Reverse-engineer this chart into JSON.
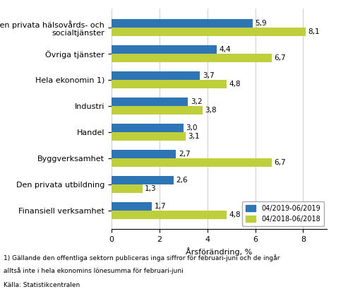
{
  "categories": [
    "Den privata hälsovårds- och\nsocialtjänster",
    "Övriga tjänster",
    "Hela ekonomin 1)",
    "Industri",
    "Handel",
    "Byggverksamhet",
    "Den privata utbildning",
    "Finansiell verksamhet"
  ],
  "values_2019": [
    5.9,
    4.4,
    3.7,
    3.2,
    3.0,
    2.7,
    2.6,
    1.7
  ],
  "values_2018": [
    8.1,
    6.7,
    4.8,
    3.8,
    3.1,
    6.7,
    1.3,
    4.8
  ],
  "color_2019": "#2E75B6",
  "color_2018": "#BFCE3B",
  "xlabel": "Årsförändring, %",
  "legend_2019": "04/2019-06/2019",
  "legend_2018": "04/2018-06/2018",
  "xlim": [
    0,
    9
  ],
  "xticks": [
    0,
    2,
    4,
    6,
    8
  ],
  "footnote1": "1) Gällande den offentliga sektorn publiceras inga siffror för februari-juni och de ingår",
  "footnote2": "alltså inte i hela ekonomins lönesumma för februari-juni",
  "source": "Källa: Statistikcentralen",
  "bar_height": 0.33,
  "value_fontsize": 7.5,
  "label_fontsize": 8.0,
  "tick_fontsize": 8.0
}
